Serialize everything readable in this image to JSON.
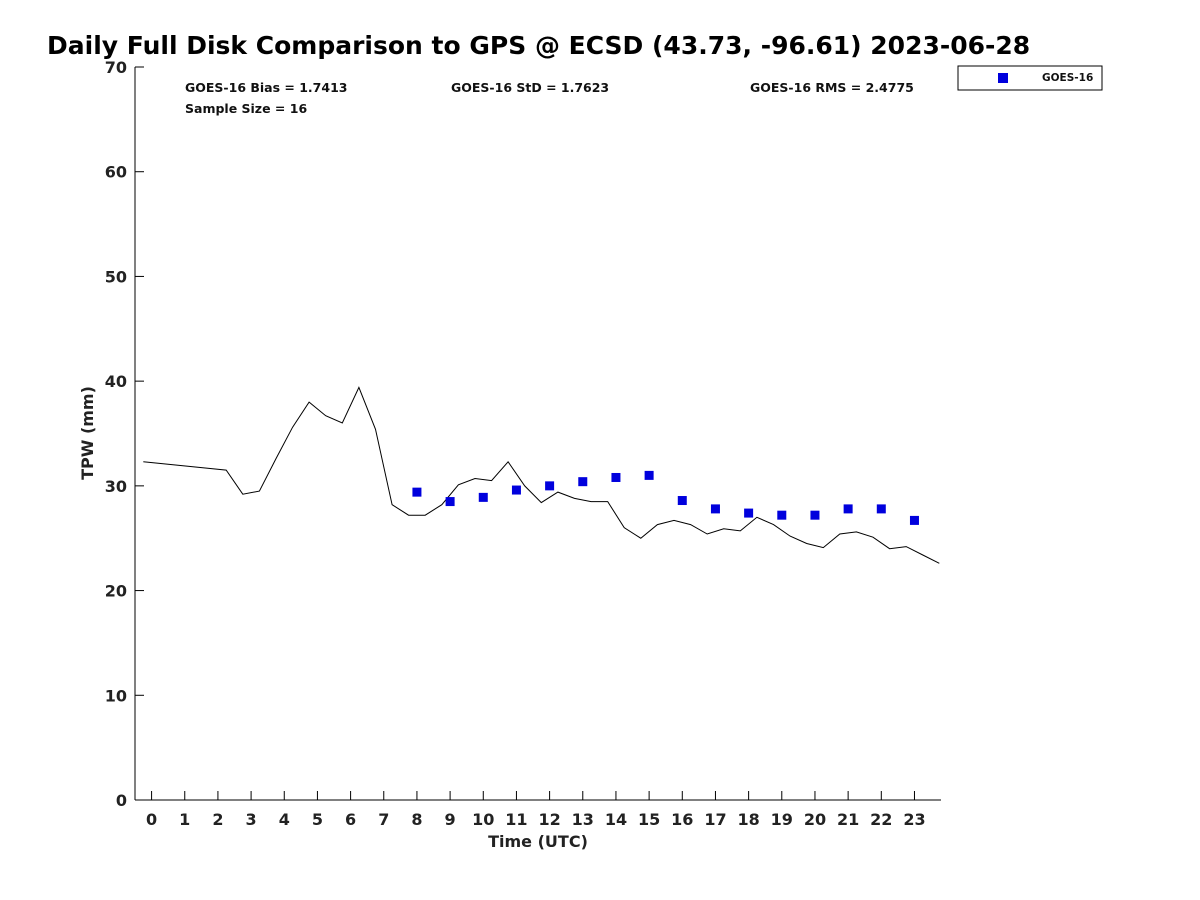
{
  "chart_data": {
    "type": "scatter",
    "title": "Daily Full Disk Comparison to GPS @ ECSD (43.73, -96.61) 2023-06-28",
    "xlabel": "Time (UTC)",
    "ylabel": "TPW (mm)",
    "xlim": [
      -0.5,
      23.8
    ],
    "ylim": [
      0,
      70
    ],
    "x_ticks": [
      0,
      1,
      2,
      3,
      4,
      5,
      6,
      7,
      8,
      9,
      10,
      11,
      12,
      13,
      14,
      15,
      16,
      17,
      18,
      19,
      20,
      21,
      22,
      23
    ],
    "y_ticks": [
      0,
      10,
      20,
      30,
      40,
      50,
      60,
      70
    ],
    "grid": false,
    "legend_position": "top-right",
    "stats": {
      "bias": "GOES-16 Bias = 1.7413",
      "std": "GOES-16 StD = 1.7623",
      "rms": "GOES-16 RMS = 2.4775",
      "sample_size": "Sample Size = 16"
    },
    "series": [
      {
        "kind": "line",
        "color": "#000000",
        "x": [
          -0.25,
          2.25,
          2.75,
          3.25,
          3.75,
          4.25,
          4.75,
          5.25,
          5.75,
          6.25,
          6.75,
          7.25,
          7.75,
          8.25,
          8.75,
          9.25,
          9.75,
          10.25,
          10.75,
          11.25,
          11.75,
          12.25,
          12.75,
          13.25,
          13.75,
          14.25,
          14.75,
          15.25,
          15.75,
          16.25,
          16.75,
          17.25,
          17.75,
          18.25,
          18.75,
          19.25,
          19.75,
          20.25,
          20.75,
          21.25,
          21.75,
          22.25,
          22.75,
          23.25,
          23.75
        ],
        "y": [
          32.3,
          31.5,
          29.2,
          29.5,
          32.6,
          35.6,
          38.0,
          36.7,
          36.0,
          39.4,
          35.4,
          28.2,
          27.2,
          27.2,
          28.2,
          30.1,
          30.7,
          30.5,
          32.3,
          30.0,
          28.4,
          29.4,
          28.8,
          28.5,
          28.5,
          26.0,
          25.0,
          26.3,
          26.7,
          26.3,
          25.4,
          25.9,
          25.7,
          27.0,
          26.3,
          25.2,
          24.5,
          24.1,
          25.4,
          25.6,
          25.1,
          24.0,
          24.2,
          23.4,
          22.6
        ]
      },
      {
        "name": "GOES-16",
        "kind": "scatter",
        "color": "#0000dd",
        "x": [
          8,
          9,
          10,
          11,
          12,
          13,
          14,
          15,
          16,
          17,
          18,
          19,
          20,
          21,
          22,
          23
        ],
        "y": [
          29.4,
          28.5,
          28.9,
          29.6,
          30.0,
          30.4,
          30.8,
          31.0,
          28.6,
          27.8,
          27.4,
          27.2,
          27.2,
          27.8,
          27.8,
          26.7
        ]
      }
    ]
  }
}
